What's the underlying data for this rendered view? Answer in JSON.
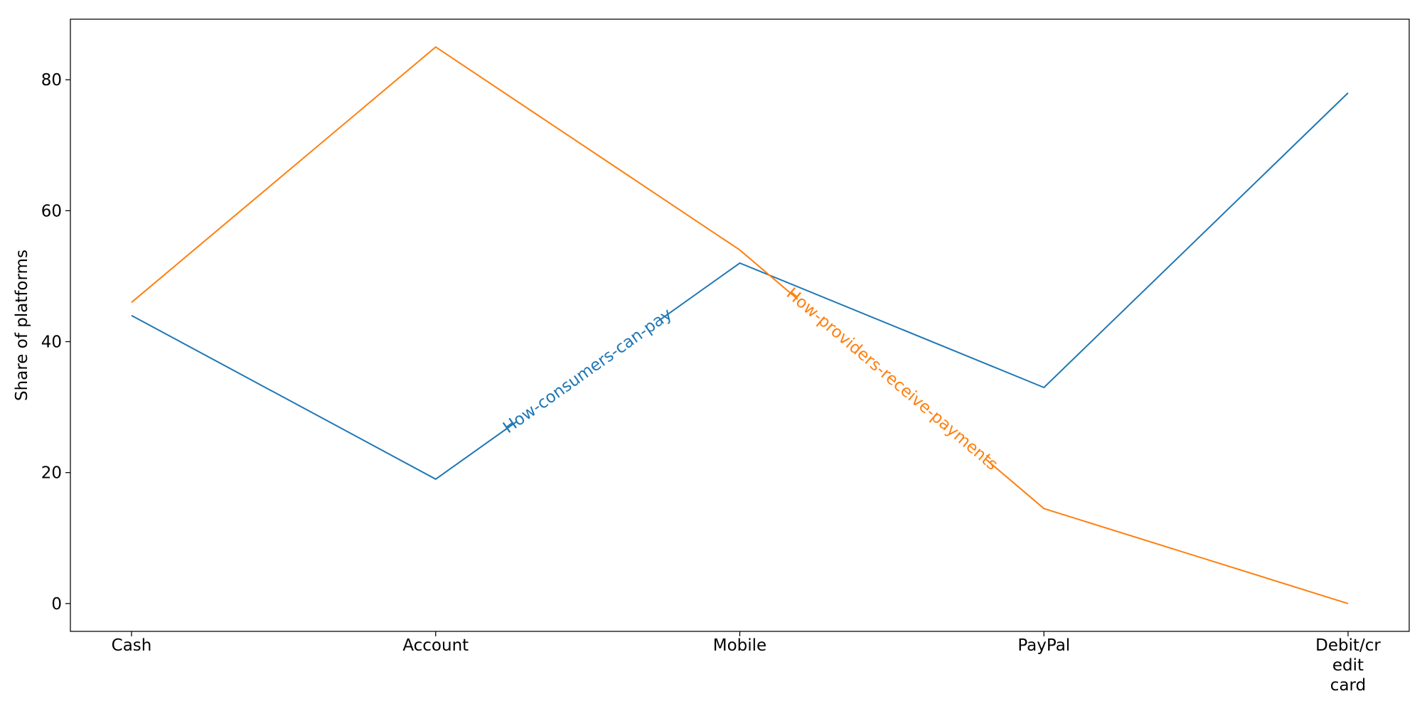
{
  "chart_data": {
    "type": "line",
    "categories": [
      "Cash",
      "Account",
      "Mobile",
      "PayPal",
      "Debit/credit card"
    ],
    "category_label_lines": [
      [
        "Cash"
      ],
      [
        "Account"
      ],
      [
        "Mobile"
      ],
      [
        "PayPal"
      ],
      [
        "Debit/cr",
        "edit",
        "card"
      ]
    ],
    "series": [
      {
        "name": "How-consumers-can-pay",
        "color": "#1f77b4",
        "values": [
          44,
          19,
          52,
          33,
          78
        ]
      },
      {
        "name": "How-providers-receive-payments",
        "color": "#ff7f0e",
        "values": [
          46,
          85,
          54,
          14.5,
          0
        ]
      }
    ],
    "title": "",
    "xlabel": "",
    "ylabel": "Share of platforms",
    "ylim": [
      -4.25,
      89.25
    ],
    "yticks": [
      0,
      20,
      40,
      60,
      80
    ],
    "grid": false,
    "legend": "inline labels along lines"
  }
}
